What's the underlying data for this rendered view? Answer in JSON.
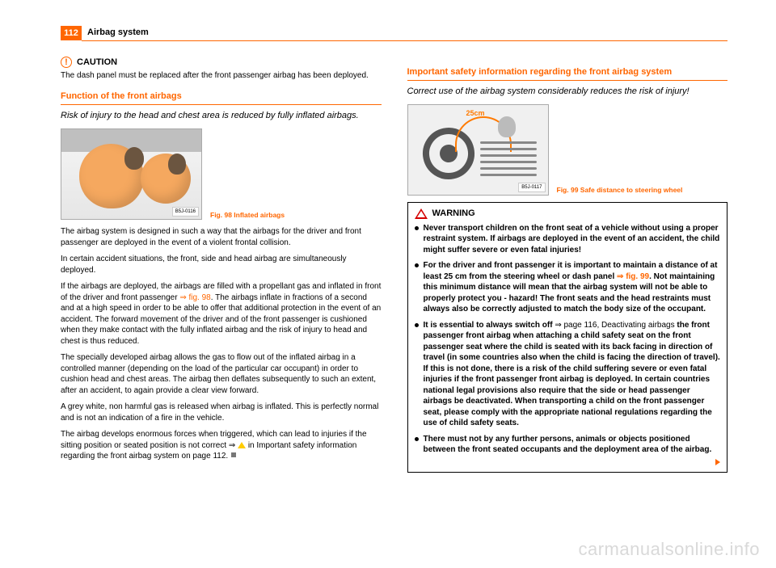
{
  "header": {
    "page_num": "112",
    "section": "Airbag system"
  },
  "left": {
    "caution_label": "CAUTION",
    "caution_text": "The dash panel must be replaced after the front passenger airbag has been deployed.",
    "h1": "Function of the front airbags",
    "lede": "Risk of injury to the head and chest area is reduced by fully inflated airbags.",
    "fig98": {
      "code": "B5J-0116",
      "caption": "Fig. 98  Inflated airbags"
    },
    "p1": "The airbag system is designed in such a way that the airbags for the driver and front passenger are deployed in the event of a violent frontal collision.",
    "p2": "In certain accident situations, the front, side and head airbag are simultaneously deployed.",
    "p3a": "If the airbags are deployed, the airbags are filled with a propellant gas and inflated in front of the driver and front passenger ",
    "p3_ref": "⇒ fig. 98",
    "p3b": ". The airbags inflate in fractions of a second and at a high speed in order to be able to offer that additional protection in the event of an accident. The forward movement of the driver and of the front passenger is cushioned when they make contact with the fully inflated airbag and the risk of injury to head and chest is thus reduced.",
    "p4": "The specially developed airbag allows the gas to flow out of the inflated airbag in a controlled manner (depending on the load of the particular car occupant) in order to cushion head and chest areas. The airbag then deflates subsequently to such an extent, after an accident, to again provide a clear view forward.",
    "p5": "A grey white, non harmful gas is released when airbag is inflated. This is perfectly normal and is not an indication of a fire in the vehicle.",
    "p6a": "The airbag develops enormous forces when triggered, which can lead to injuries if the sitting position or seated position is not correct ⇒ ",
    "p6b": " in Important safety information regarding the front airbag system on page 112."
  },
  "right": {
    "h1": "Important safety information regarding the front airbag system",
    "lede": "Correct use of the airbag system considerably reduces the risk of injury!",
    "fig99": {
      "code": "B5J-0117",
      "dist": "25cm",
      "caption": "Fig. 99  Safe distance to steering wheel"
    },
    "warning_label": "WARNING",
    "b1": "Never transport children on the front seat of a vehicle without using a proper restraint system. If airbags are deployed in the event of an accident, the child might suffer severe or even fatal injuries!",
    "b2a": "For the driver and front passenger it is important to maintain a distance of at least 25 cm from the steering wheel or dash panel ",
    "b2_ref": "⇒ fig. 99",
    "b2b": ". Not maintaining this minimum distance will mean that the airbag system will not be able to properly protect you - hazard! The front seats and the head restraints must always also be correctly adjusted to match the body size of the occupant.",
    "b3a": "It is essential to always switch off ",
    "b3_ref": "⇒ page 116, Deactivating airbags",
    "b3b": " the front passenger front airbag when attaching a child safety seat on the front passenger seat where the child is seated with its back facing in direction of travel (in some countries also when the child is facing the direction of travel). If this is not done, there is a risk of the child suffering severe or even fatal injuries if the front passenger front airbag is deployed. In certain countries national legal provisions also require that the side or head passenger airbags be deactivated. When transporting a child on the front passenger seat, please comply with the appropriate national regulations regarding the use of child safety seats.",
    "b4": "There must not by any further persons, animals or objects positioned between the front seated occupants and the deployment area of the airbag."
  },
  "watermark": "carmanualsonline.info"
}
